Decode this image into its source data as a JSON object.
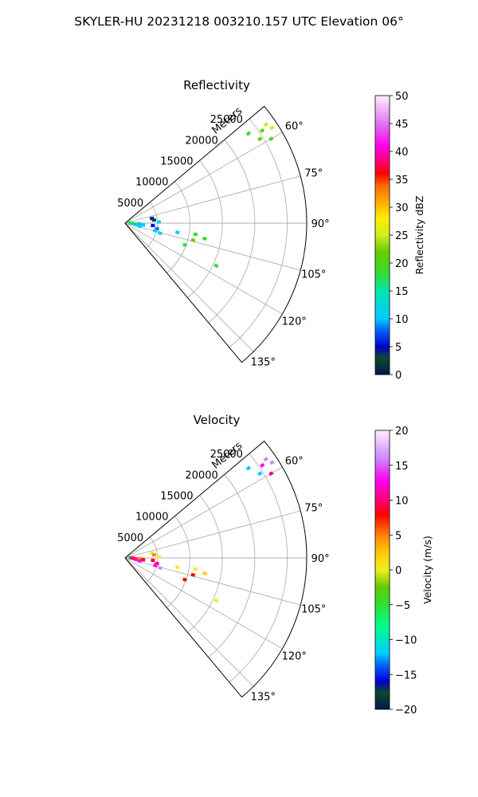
{
  "figure_title": "SKYLER-HU  20231218  003210.157 UTC Elevation 06°",
  "chart_data": [
    {
      "type": "radar-sector",
      "title": "Reflectivity",
      "range_label": "Meters",
      "range_max": 28000,
      "range_ticks": [
        5000,
        10000,
        15000,
        20000,
        25000
      ],
      "range_tick_labels": [
        "5000",
        "10000",
        "15000",
        "20000",
        "25000"
      ],
      "azimuth_range": [
        50,
        140
      ],
      "azimuth_ticks": [
        60,
        75,
        90,
        105,
        120,
        135
      ],
      "azimuth_tick_labels": [
        "60°",
        "75°",
        "90°",
        "105°",
        "120°",
        "135°"
      ],
      "grid": true,
      "colorbar": {
        "label": "Reflectivity dBZ",
        "min": 0,
        "max": 50,
        "ticks": [
          0,
          5,
          10,
          15,
          20,
          25,
          30,
          35,
          40,
          45,
          50
        ],
        "tick_labels": [
          "0",
          "5",
          "10",
          "15",
          "20",
          "25",
          "30",
          "35",
          "40",
          "45",
          "50"
        ]
      },
      "echoes": [
        {
          "az": 56,
          "r": 25500,
          "value": 22
        },
        {
          "az": 58,
          "r": 24500,
          "value": 24
        },
        {
          "az": 55,
          "r": 26500,
          "value": 26
        },
        {
          "az": 60,
          "r": 26000,
          "value": 21
        },
        {
          "az": 54,
          "r": 23500,
          "value": 19
        },
        {
          "az": 57,
          "r": 27000,
          "value": 25
        },
        {
          "az": 80,
          "r": 4200,
          "value": 5
        },
        {
          "az": 84,
          "r": 4500,
          "value": 4
        },
        {
          "az": 88,
          "r": 5200,
          "value": 11
        },
        {
          "az": 95,
          "r": 4300,
          "value": 6
        },
        {
          "az": 100,
          "r": 5000,
          "value": 8
        },
        {
          "az": 104,
          "r": 4800,
          "value": 12
        },
        {
          "az": 106,
          "r": 5600,
          "value": 14
        },
        {
          "az": 100,
          "r": 8200,
          "value": 14
        },
        {
          "az": 99,
          "r": 11000,
          "value": 19
        },
        {
          "az": 101,
          "r": 12500,
          "value": 18
        },
        {
          "az": 104,
          "r": 10800,
          "value": 22
        },
        {
          "az": 110,
          "r": 9800,
          "value": 21
        },
        {
          "az": 115,
          "r": 15500,
          "value": 20
        },
        {
          "az": 86,
          "r": 800,
          "value": 15
        },
        {
          "az": 90,
          "r": 1000,
          "value": 20
        },
        {
          "az": 94,
          "r": 1500,
          "value": 18
        },
        {
          "az": 98,
          "r": 1700,
          "value": 12
        },
        {
          "az": 92,
          "r": 2200,
          "value": 13
        },
        {
          "az": 96,
          "r": 2800,
          "value": 10
        },
        {
          "az": 102,
          "r": 2300,
          "value": 11
        }
      ]
    },
    {
      "type": "radar-sector",
      "title": "Velocity",
      "range_label": "Meters",
      "range_max": 28000,
      "range_ticks": [
        5000,
        10000,
        15000,
        20000,
        25000
      ],
      "range_tick_labels": [
        "5000",
        "10000",
        "15000",
        "20000",
        "25000"
      ],
      "azimuth_range": [
        50,
        140
      ],
      "azimuth_ticks": [
        60,
        75,
        90,
        105,
        120,
        135
      ],
      "azimuth_tick_labels": [
        "60°",
        "75°",
        "90°",
        "105°",
        "120°",
        "135°"
      ],
      "grid": true,
      "colorbar": {
        "label": "Velocity (m/s)",
        "min": -20,
        "max": 20,
        "ticks": [
          -20,
          -15,
          -10,
          -5,
          0,
          5,
          10,
          15,
          20
        ],
        "tick_labels": [
          "−20",
          "−15",
          "−10",
          "−5",
          "0",
          "5",
          "10",
          "15",
          "20"
        ]
      },
      "echoes": [
        {
          "az": 56,
          "r": 25500,
          "value": 15
        },
        {
          "az": 58,
          "r": 24500,
          "value": -11
        },
        {
          "az": 55,
          "r": 26500,
          "value": 17
        },
        {
          "az": 60,
          "r": 26000,
          "value": 12
        },
        {
          "az": 54,
          "r": 23500,
          "value": -10
        },
        {
          "az": 57,
          "r": 27000,
          "value": 16
        },
        {
          "az": 80,
          "r": 4200,
          "value": 1
        },
        {
          "az": 84,
          "r": 4500,
          "value": 6
        },
        {
          "az": 88,
          "r": 5200,
          "value": 0
        },
        {
          "az": 95,
          "r": 4300,
          "value": 9
        },
        {
          "az": 100,
          "r": 5000,
          "value": 11
        },
        {
          "az": 104,
          "r": 4800,
          "value": 13
        },
        {
          "az": 106,
          "r": 5600,
          "value": 16
        },
        {
          "az": 100,
          "r": 8200,
          "value": 1
        },
        {
          "az": 99,
          "r": 11000,
          "value": 2
        },
        {
          "az": 101,
          "r": 12500,
          "value": 3
        },
        {
          "az": 104,
          "r": 10800,
          "value": 8
        },
        {
          "az": 110,
          "r": 9800,
          "value": 9
        },
        {
          "az": 115,
          "r": 15500,
          "value": 2
        },
        {
          "az": 86,
          "r": 800,
          "value": -7
        },
        {
          "az": 90,
          "r": 1000,
          "value": 12
        },
        {
          "az": 94,
          "r": 1500,
          "value": 9
        },
        {
          "az": 98,
          "r": 1700,
          "value": 15
        },
        {
          "az": 92,
          "r": 2200,
          "value": 5
        },
        {
          "az": 96,
          "r": 2800,
          "value": 10
        },
        {
          "az": 102,
          "r": 2300,
          "value": 14
        }
      ]
    }
  ]
}
